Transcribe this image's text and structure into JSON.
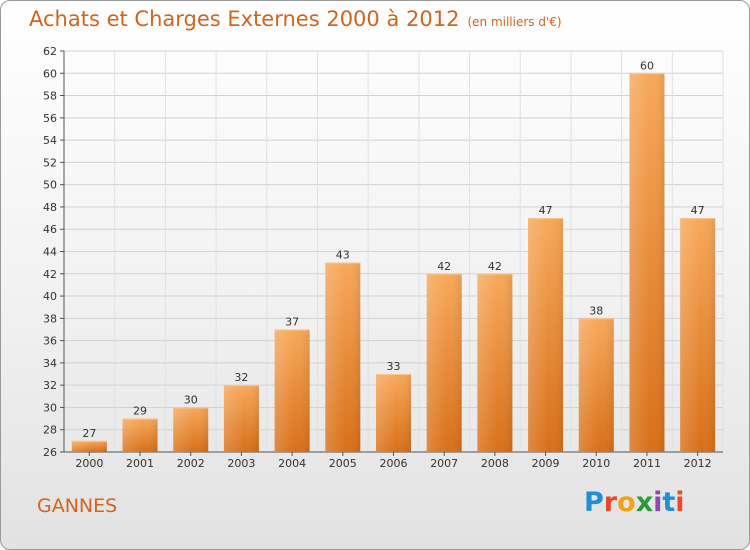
{
  "title": "Achats et Charges Externes 2000 à 2012",
  "subtitle": "(en milliers d'€)",
  "location": "GANNES",
  "logo": "Proxiti",
  "colors": {
    "title": "#d4641c",
    "bar_top": "#f7a85a",
    "bar_bottom": "#d86f18"
  },
  "chart_data": {
    "type": "bar",
    "title": "Achats et Charges Externes 2000 à 2012",
    "subtitle": "(en milliers d'€)",
    "xlabel": "",
    "ylabel": "",
    "categories": [
      "2000",
      "2001",
      "2002",
      "2003",
      "2004",
      "2005",
      "2006",
      "2007",
      "2008",
      "2009",
      "2010",
      "2011",
      "2012"
    ],
    "values": [
      27,
      29,
      30,
      32,
      37,
      43,
      33,
      42,
      42,
      47,
      38,
      60,
      47
    ],
    "ylim": [
      26,
      62
    ],
    "yticks": [
      26,
      28,
      30,
      32,
      34,
      36,
      38,
      40,
      42,
      44,
      46,
      48,
      50,
      52,
      54,
      56,
      58,
      60,
      62
    ],
    "grid": true,
    "legend": "none"
  }
}
